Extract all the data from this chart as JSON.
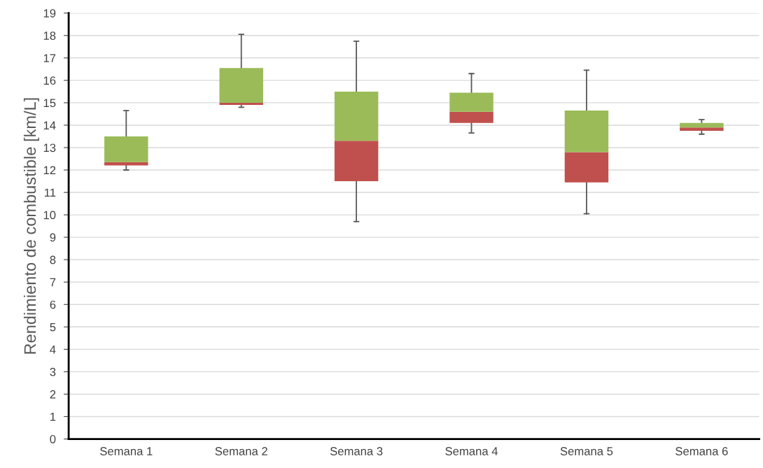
{
  "chart_data": {
    "type": "box",
    "ylabel": "Rendimiento de combustible [km/L]",
    "categories": [
      "Semana 1",
      "Semana 2",
      "Semana 3",
      "Semana 4",
      "Semana 5",
      "Semana 6"
    ],
    "boxes": [
      {
        "low": 12.0,
        "q1": 12.2,
        "median": 12.35,
        "q3": 13.5,
        "high": 14.65
      },
      {
        "low": 14.8,
        "q1": 14.9,
        "median": 15.0,
        "q3": 16.55,
        "high": 18.05
      },
      {
        "low": 9.7,
        "q1": 11.5,
        "median": 13.3,
        "q3": 15.5,
        "high": 17.75
      },
      {
        "low": 13.65,
        "q1": 14.1,
        "median": 14.6,
        "q3": 15.45,
        "high": 16.3
      },
      {
        "low": 10.05,
        "q1": 11.45,
        "median": 12.8,
        "q3": 14.65,
        "high": 16.45
      },
      {
        "low": 13.6,
        "q1": 13.75,
        "median": 13.9,
        "q3": 14.1,
        "high": 14.25
      }
    ],
    "colors": [
      [
        "#c0504d",
        "#9bbb59"
      ],
      [
        "#c0504d",
        "#9bbb59"
      ],
      [
        "#c0504d",
        "#9bbb59"
      ],
      [
        "#c0504d",
        "#9bbb59"
      ],
      [
        "#c0504d",
        "#9bbb59"
      ],
      [
        "#c0504d",
        "#9bbb59"
      ]
    ],
    "ylim": [
      0,
      19
    ],
    "yticks": [
      0,
      1,
      2,
      3,
      4,
      5,
      6,
      7,
      8,
      9,
      10,
      11,
      12,
      13,
      14,
      15,
      16,
      17,
      18,
      19
    ],
    "grid": "y"
  }
}
